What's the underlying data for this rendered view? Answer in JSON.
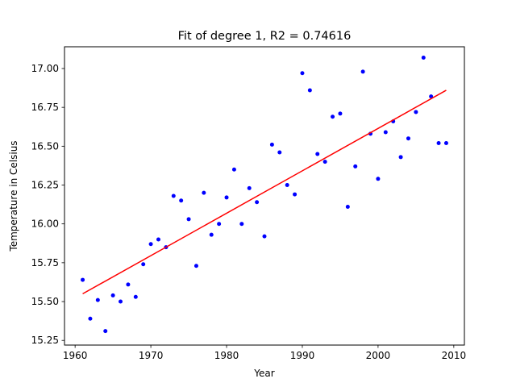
{
  "chart_data": {
    "type": "scatter",
    "title": "Fit of degree 1, R2 = 0.74616",
    "xlabel": "Year",
    "ylabel": "Temperature in Celsius",
    "xlim": [
      1958.6,
      2011.4
    ],
    "ylim": [
      15.22,
      17.14
    ],
    "x_ticks": [
      1960,
      1970,
      1980,
      1990,
      2000,
      2010
    ],
    "x_tick_labels": [
      "1960",
      "1970",
      "1980",
      "1990",
      "2000",
      "2010"
    ],
    "y_ticks": [
      15.25,
      15.5,
      15.75,
      16.0,
      16.25,
      16.5,
      16.75,
      17.0
    ],
    "y_tick_labels": [
      "15.25",
      "15.50",
      "15.75",
      "16.00",
      "16.25",
      "16.50",
      "16.75",
      "17.00"
    ],
    "grid": false,
    "series": [
      {
        "kind": "scatter",
        "color": "#0000ff",
        "x": [
          1961,
          1962,
          1963,
          1964,
          1965,
          1966,
          1967,
          1968,
          1969,
          1970,
          1971,
          1972,
          1973,
          1974,
          1975,
          1976,
          1977,
          1978,
          1979,
          1980,
          1981,
          1982,
          1983,
          1984,
          1985,
          1986,
          1987,
          1988,
          1989,
          1990,
          1991,
          1992,
          1993,
          1994,
          1995,
          1996,
          1997,
          1998,
          1999,
          2000,
          2001,
          2002,
          2003,
          2004,
          2005,
          2006,
          2007,
          2008,
          2009
        ],
        "y": [
          15.64,
          15.39,
          15.51,
          15.31,
          15.54,
          15.5,
          15.61,
          15.53,
          15.74,
          15.87,
          15.9,
          15.85,
          16.18,
          16.15,
          16.03,
          15.73,
          16.2,
          15.93,
          16.0,
          16.17,
          16.35,
          16.0,
          16.23,
          16.14,
          15.92,
          16.51,
          16.46,
          16.25,
          16.19,
          16.97,
          16.86,
          16.45,
          16.4,
          16.69,
          16.71,
          16.11,
          16.37,
          16.98,
          16.58,
          16.29,
          16.59,
          16.66,
          16.43,
          16.55,
          16.72,
          17.07,
          16.82,
          16.52,
          16.52
        ]
      },
      {
        "kind": "line",
        "color": "#ff0000",
        "x": [
          1961,
          2009
        ],
        "y": [
          15.55,
          16.86
        ]
      }
    ]
  }
}
